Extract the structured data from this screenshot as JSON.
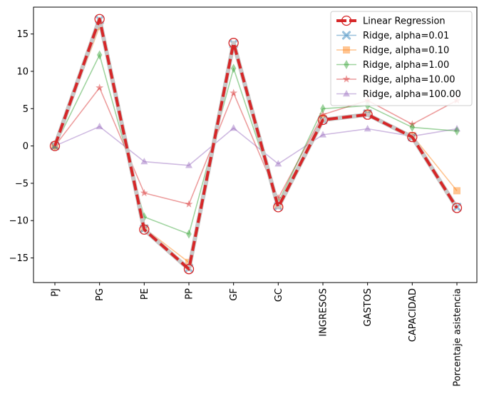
{
  "chart_data": {
    "type": "line",
    "categories": [
      "PJ",
      "PG",
      "PE",
      "PP",
      "GF",
      "GC",
      "INGRESOS",
      "GASTOS",
      "CAPACIDAD",
      "Porcentaje asistencia"
    ],
    "ylim": [
      -18.3,
      18.6
    ],
    "yticks": [
      -15,
      -10,
      -5,
      0,
      5,
      10,
      15
    ],
    "grid": false,
    "legend_position": "top-right",
    "series": [
      {
        "name": "Linear Regression",
        "color": "#d62728",
        "marker": "circle-open",
        "values": [
          0,
          17.0,
          -11.2,
          -16.5,
          13.8,
          -8.2,
          3.5,
          4.2,
          1.2,
          -8.3
        ]
      },
      {
        "name": "Ridge, alpha=0.01",
        "color": "#1f77b4",
        "marker": "x",
        "values": [
          0,
          16.9,
          -11.1,
          -16.4,
          13.7,
          -8.1,
          3.5,
          4.3,
          1.2,
          -8.2
        ]
      },
      {
        "name": "Ridge, alpha=0.10",
        "color": "#ff7f0e",
        "marker": "square",
        "values": [
          0,
          16.0,
          -11.0,
          -15.6,
          13.0,
          -7.9,
          3.7,
          4.4,
          1.4,
          -6.0
        ]
      },
      {
        "name": "Ridge, alpha=1.00",
        "color": "#2ca02c",
        "marker": "diamond",
        "values": [
          0,
          12.2,
          -9.5,
          -11.8,
          10.4,
          -7.6,
          5.0,
          5.4,
          2.5,
          2.0
        ]
      },
      {
        "name": "Ridge, alpha=10.00",
        "color": "#d62728",
        "marker": "star",
        "values": [
          0,
          7.8,
          -6.3,
          -7.8,
          7.1,
          -7.0,
          4.2,
          6.1,
          2.9,
          6.1
        ]
      },
      {
        "name": "Ridge, alpha=100.00",
        "color": "#9467bd",
        "marker": "triangle",
        "values": [
          0,
          2.6,
          -2.1,
          -2.6,
          2.4,
          -2.4,
          1.5,
          2.3,
          1.3,
          2.3
        ]
      }
    ]
  }
}
